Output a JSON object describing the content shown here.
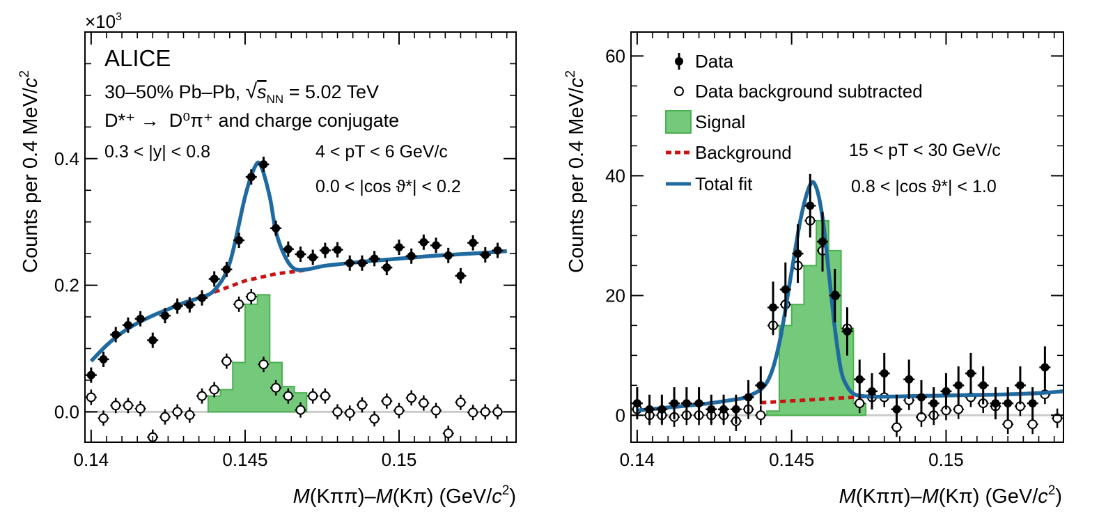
{
  "colors": {
    "fit": "#1f6aa0",
    "background": "#cc1111",
    "signal_fill": "#74c97a",
    "signal_edge": "#4bb04f",
    "zero_line": "#cccccc",
    "points": "#000000"
  },
  "chart_data": [
    {
      "type": "scatter",
      "panel": "left",
      "multiplier": "×10",
      "multiplier_exp": "3",
      "ylabel": "Counts per 0.4 MeV/",
      "ylabel_c": "c",
      "ylabel_exp": "2",
      "xlabel_parts": [
        "M",
        "(Kππ)–",
        "M",
        "(Kπ) (GeV/",
        "c",
        "2",
        ")"
      ],
      "xlim": [
        0.1398,
        0.1538
      ],
      "ylim": [
        -0.048,
        0.6
      ],
      "xticks": [
        0.14,
        0.145,
        0.15
      ],
      "xtick_labels": [
        "0.14",
        "0.145",
        "0.15"
      ],
      "yticks": [
        0.0,
        0.2,
        0.4
      ],
      "ytick_labels": [
        "0.0",
        "0.2",
        "0.4"
      ],
      "annotations": {
        "experiment": "ALICE",
        "system_a": "30–50% Pb–Pb, ",
        "sqrt_s": "s",
        "nn": "NN",
        "energy": " = 5.02 TeV",
        "decay_a": "D*⁺ →",
        "decay_b": "D⁰π⁺ and charge conjugate",
        "rapidity": "0.3 < |y| < 0.8",
        "pt": "4 < pT < 6 GeV/c",
        "cos": "0.0 < |cos ϑ*| < 0.2"
      },
      "series": [
        {
          "name": "Data",
          "x": [
            0.14,
            0.1404,
            0.1408,
            0.1412,
            0.1416,
            0.142,
            0.1424,
            0.1428,
            0.1432,
            0.1436,
            0.144,
            0.1444,
            0.1448,
            0.1452,
            0.1456,
            0.146,
            0.1464,
            0.1468,
            0.1472,
            0.1476,
            0.148,
            0.1484,
            0.1488,
            0.1492,
            0.1496,
            0.15,
            0.1504,
            0.1508,
            0.1512,
            0.1516,
            0.152,
            0.1524,
            0.1528,
            0.1532
          ],
          "y": [
            0.058,
            0.083,
            0.122,
            0.137,
            0.147,
            0.113,
            0.152,
            0.167,
            0.169,
            0.18,
            0.21,
            0.225,
            0.271,
            0.371,
            0.391,
            0.29,
            0.257,
            0.249,
            0.244,
            0.255,
            0.256,
            0.235,
            0.235,
            0.242,
            0.228,
            0.26,
            0.246,
            0.268,
            0.263,
            0.247,
            0.215,
            0.267,
            0.248,
            0.255
          ]
        },
        {
          "name": "Data background subtracted",
          "x": [
            0.14,
            0.1404,
            0.1408,
            0.1412,
            0.1416,
            0.142,
            0.1424,
            0.1428,
            0.1432,
            0.1436,
            0.144,
            0.1444,
            0.1448,
            0.1452,
            0.1456,
            0.146,
            0.1464,
            0.1468,
            0.1472,
            0.1476,
            0.148,
            0.1484,
            0.1488,
            0.1492,
            0.1496,
            0.15,
            0.1504,
            0.1508,
            0.1512,
            0.1516,
            0.152,
            0.1524,
            0.1528,
            0.1532
          ],
          "y": [
            0.023,
            -0.01,
            0.01,
            0.01,
            0.005,
            -0.04,
            -0.008,
            0.0,
            -0.005,
            0.025,
            0.035,
            0.08,
            0.17,
            0.182,
            0.075,
            0.038,
            0.025,
            0.003,
            0.025,
            0.025,
            0.0,
            -0.002,
            0.011,
            -0.011,
            0.017,
            0.002,
            0.022,
            0.014,
            0.002,
            -0.034,
            0.015,
            -0.001,
            0.0,
            0.0
          ]
        },
        {
          "name": "Signal",
          "type": "histogram",
          "edges": [
            0.1438,
            0.1442,
            0.1446,
            0.145,
            0.1454,
            0.1458,
            0.1462,
            0.1466,
            0.147
          ],
          "values": [
            0.025,
            0.035,
            0.078,
            0.17,
            0.185,
            0.078,
            0.04,
            0.03
          ]
        },
        {
          "name": "Background",
          "x": [
            0.144,
            0.145,
            0.146,
            0.147
          ],
          "y": [
            0.189,
            0.207,
            0.218,
            0.224
          ]
        },
        {
          "name": "Total fit",
          "x": [
            0.14,
            0.1405,
            0.141,
            0.1415,
            0.142,
            0.1425,
            0.143,
            0.1435,
            0.144,
            0.1445,
            0.145,
            0.1453,
            0.1455,
            0.1458,
            0.146,
            0.1463,
            0.1466,
            0.147,
            0.1475,
            0.148,
            0.149,
            0.15,
            0.151,
            0.152,
            0.153,
            0.1535
          ],
          "y": [
            0.08,
            0.105,
            0.125,
            0.14,
            0.152,
            0.162,
            0.172,
            0.18,
            0.192,
            0.235,
            0.34,
            0.385,
            0.39,
            0.34,
            0.285,
            0.245,
            0.226,
            0.225,
            0.23,
            0.233,
            0.238,
            0.242,
            0.246,
            0.249,
            0.252,
            0.254
          ]
        }
      ]
    },
    {
      "type": "scatter",
      "panel": "right",
      "ylabel": "Counts per 0.4 MeV/",
      "ylabel_c": "c",
      "ylabel_exp": "2",
      "xlabel_parts": [
        "M",
        "(Kππ)–",
        "M",
        "(Kπ) (GeV/",
        "c",
        "2",
        ")"
      ],
      "xlim": [
        0.1398,
        0.1538
      ],
      "ylim": [
        -4.5,
        64
      ],
      "xticks": [
        0.14,
        0.145,
        0.15
      ],
      "xtick_labels": [
        "0.14",
        "0.145",
        "0.15"
      ],
      "yticks": [
        0,
        20,
        40,
        60
      ],
      "ytick_labels": [
        "0",
        "20",
        "40",
        "60"
      ],
      "annotations": {
        "pt": "15 < pT < 30 GeV/c",
        "cos": "0.8 < |cos ϑ*| < 1.0"
      },
      "legend": [
        "Data",
        "Data background subtracted",
        "Signal",
        "Background",
        "Total fit"
      ],
      "series": [
        {
          "name": "Data",
          "x": [
            0.14,
            0.1404,
            0.1408,
            0.1412,
            0.1416,
            0.142,
            0.1424,
            0.1428,
            0.1432,
            0.1436,
            0.144,
            0.1444,
            0.1448,
            0.1452,
            0.1456,
            0.146,
            0.1464,
            0.1468,
            0.1472,
            0.1476,
            0.148,
            0.1484,
            0.1488,
            0.1492,
            0.1496,
            0.15,
            0.1504,
            0.1508,
            0.1512,
            0.1516,
            0.152,
            0.1524,
            0.1528,
            0.1532
          ],
          "y": [
            2,
            1,
            1,
            2,
            2,
            2,
            1,
            1,
            1,
            3,
            5,
            18,
            21,
            27,
            35,
            29,
            20,
            14,
            6,
            4,
            7,
            1,
            6,
            3,
            2,
            4,
            5,
            7,
            5,
            2,
            2,
            5,
            2,
            8
          ]
        },
        {
          "name": "Data background subtracted",
          "x": [
            0.14,
            0.1404,
            0.1408,
            0.1412,
            0.1416,
            0.142,
            0.1424,
            0.1428,
            0.1432,
            0.1436,
            0.144,
            0.1444,
            0.1448,
            0.1452,
            0.1456,
            0.146,
            0.1464,
            0.1468,
            0.1472,
            0.1476,
            0.148,
            0.1484,
            0.1488,
            0.1492,
            0.1496,
            0.15,
            0.1504,
            0.1508,
            0.1512,
            0.1516,
            0.152,
            0.1524,
            0.1528,
            0.1532,
            0.1536
          ],
          "y": [
            1,
            0,
            0,
            -0.3,
            0,
            0,
            0,
            0,
            -1,
            1,
            0,
            15,
            18.5,
            25,
            32.5,
            27.5,
            20,
            14.5,
            2,
            3,
            3,
            -2,
            2.5,
            -0.3,
            0,
            0.8,
            1,
            3,
            2,
            1.5,
            -1.5,
            1.5,
            -1.5,
            3.5,
            -0.5
          ]
        },
        {
          "name": "Signal",
          "type": "histogram",
          "edges": [
            0.1442,
            0.1446,
            0.145,
            0.1454,
            0.1458,
            0.1462,
            0.1466,
            0.147,
            0.1474
          ],
          "values": [
            0.7,
            15,
            18.5,
            25,
            32.5,
            27.5,
            14.5,
            2
          ]
        },
        {
          "name": "Background",
          "x": [
            0.144,
            0.145,
            0.146,
            0.147,
            0.1476
          ],
          "y": [
            2.1,
            2.4,
            2.7,
            3.0,
            3.2
          ]
        },
        {
          "name": "Total fit",
          "x": [
            0.14,
            0.141,
            0.142,
            0.143,
            0.1436,
            0.1442,
            0.1446,
            0.145,
            0.1453,
            0.1456,
            0.1458,
            0.146,
            0.1462,
            0.1464,
            0.1466,
            0.1468,
            0.147,
            0.1473,
            0.1478,
            0.149,
            0.15,
            0.151,
            0.152,
            0.153,
            0.1538
          ],
          "y": [
            0.8,
            1.3,
            1.8,
            2.5,
            3.2,
            5.5,
            12,
            24,
            33,
            38.5,
            38,
            33,
            24,
            14.5,
            7.5,
            4.8,
            3.6,
            3.2,
            3.1,
            3.2,
            3.3,
            3.4,
            3.5,
            3.7,
            4.0
          ]
        }
      ]
    }
  ]
}
